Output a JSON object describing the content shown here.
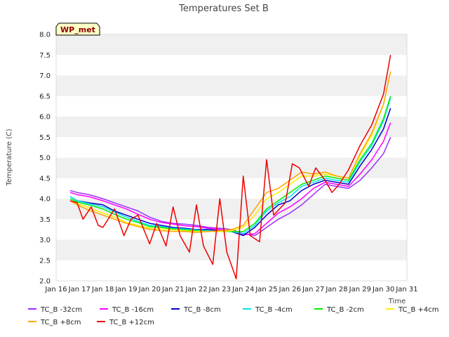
{
  "chart_data": {
    "type": "line",
    "title": "Temperatures Set B",
    "xlabel": "Time",
    "ylabel": "Temperature (C)",
    "badge": "WP_met",
    "ylim": [
      2.0,
      8.0
    ],
    "yticks": [
      "2.0",
      "2.5",
      "3.0",
      "3.5",
      "4.0",
      "4.5",
      "5.0",
      "5.5",
      "6.0",
      "6.5",
      "7.0",
      "7.5",
      "8.0"
    ],
    "xlim": [
      16,
      31
    ],
    "xticks": [
      "Jan 16",
      "Jan 17",
      "Jan 18",
      "Jan 19",
      "Jan 20",
      "Jan 21",
      "Jan 22",
      "Jan 23",
      "Jan 24",
      "Jan 25",
      "Jan 26",
      "Jan 27",
      "Jan 28",
      "Jan 29",
      "Jan 30",
      "Jan 31"
    ],
    "grid": "horizontal bands",
    "legend_position": "bottom",
    "series": [
      {
        "name": "TC_B -32cm",
        "color": "#9b30ff",
        "x": [
          16.6,
          16.9,
          17.4,
          18.0,
          18.5,
          19.0,
          19.5,
          20.0,
          20.5,
          21.0,
          21.5,
          22.0,
          22.5,
          23.0,
          23.5,
          24.0,
          24.5,
          25.0,
          25.5,
          26.0,
          26.5,
          27.0,
          27.5,
          28.0,
          28.5,
          29.0,
          29.5,
          30.0,
          30.3
        ],
        "y": [
          4.2,
          4.15,
          4.1,
          4.0,
          3.9,
          3.8,
          3.7,
          3.55,
          3.45,
          3.4,
          3.38,
          3.35,
          3.3,
          3.28,
          3.25,
          3.15,
          3.1,
          3.3,
          3.5,
          3.65,
          3.85,
          4.1,
          4.35,
          4.3,
          4.25,
          4.45,
          4.75,
          5.1,
          5.5
        ]
      },
      {
        "name": "TC_B -16cm",
        "color": "#ff00ff",
        "x": [
          16.6,
          16.9,
          17.4,
          18.0,
          18.5,
          19.0,
          19.5,
          20.0,
          20.5,
          21.0,
          21.5,
          22.0,
          22.5,
          23.0,
          23.5,
          24.0,
          24.5,
          25.0,
          25.5,
          26.0,
          26.5,
          27.0,
          27.5,
          28.0,
          28.5,
          29.0,
          29.5,
          30.0,
          30.3
        ],
        "y": [
          4.15,
          4.1,
          4.05,
          3.95,
          3.85,
          3.75,
          3.62,
          3.5,
          3.42,
          3.38,
          3.34,
          3.32,
          3.28,
          3.25,
          3.22,
          3.12,
          3.15,
          3.4,
          3.65,
          3.8,
          4.0,
          4.25,
          4.4,
          4.35,
          4.3,
          4.6,
          4.95,
          5.4,
          5.85
        ]
      },
      {
        "name": "TC_B -8cm",
        "color": "#0000cd",
        "x": [
          16.6,
          16.9,
          17.4,
          18.0,
          18.5,
          19.0,
          19.5,
          20.0,
          20.5,
          21.0,
          21.5,
          22.0,
          22.5,
          23.0,
          23.5,
          24.0,
          24.5,
          25.0,
          25.5,
          26.0,
          26.5,
          27.0,
          27.5,
          28.0,
          28.5,
          29.0,
          29.5,
          30.0,
          30.3
        ],
        "y": [
          4.05,
          3.95,
          3.9,
          3.85,
          3.7,
          3.6,
          3.5,
          3.4,
          3.35,
          3.3,
          3.28,
          3.25,
          3.25,
          3.22,
          3.2,
          3.1,
          3.3,
          3.6,
          3.85,
          3.95,
          4.2,
          4.35,
          4.45,
          4.4,
          4.35,
          4.8,
          5.2,
          5.7,
          6.2
        ]
      },
      {
        "name": "TC_B -4cm",
        "color": "#00e5ee",
        "x": [
          16.6,
          16.9,
          17.4,
          18.0,
          18.5,
          19.0,
          19.5,
          20.0,
          20.5,
          21.0,
          21.5,
          22.0,
          22.5,
          23.0,
          23.5,
          24.0,
          24.5,
          25.0,
          25.5,
          26.0,
          26.5,
          27.0,
          27.5,
          28.0,
          28.5,
          29.0,
          29.5,
          30.0,
          30.3
        ],
        "y": [
          4.05,
          3.95,
          3.88,
          3.8,
          3.68,
          3.55,
          3.45,
          3.35,
          3.32,
          3.28,
          3.26,
          3.24,
          3.22,
          3.2,
          3.2,
          3.15,
          3.35,
          3.7,
          3.9,
          4.05,
          4.3,
          4.4,
          4.5,
          4.45,
          4.4,
          4.9,
          5.3,
          5.9,
          6.45
        ]
      },
      {
        "name": "TC_B -2cm",
        "color": "#00ee00",
        "x": [
          16.6,
          16.9,
          17.4,
          18.0,
          18.5,
          19.0,
          19.5,
          20.0,
          20.5,
          21.0,
          21.5,
          22.0,
          22.5,
          23.0,
          23.5,
          24.0,
          24.5,
          25.0,
          25.5,
          26.0,
          26.5,
          27.0,
          27.5,
          28.0,
          28.5,
          29.0,
          29.5,
          30.0,
          30.3
        ],
        "y": [
          4.0,
          3.92,
          3.85,
          3.75,
          3.62,
          3.5,
          3.42,
          3.32,
          3.3,
          3.26,
          3.24,
          3.22,
          3.2,
          3.2,
          3.2,
          3.2,
          3.4,
          3.75,
          3.95,
          4.15,
          4.35,
          4.45,
          4.55,
          4.5,
          4.45,
          4.95,
          5.35,
          5.95,
          6.5
        ]
      },
      {
        "name": "TC_B +4cm",
        "color": "#ffee00",
        "x": [
          16.6,
          16.9,
          17.4,
          18.0,
          18.5,
          19.0,
          19.5,
          20.0,
          20.5,
          21.0,
          21.5,
          22.0,
          22.5,
          23.0,
          23.5,
          24.0,
          24.5,
          25.0,
          25.5,
          26.0,
          26.5,
          27.0,
          27.5,
          28.0,
          28.5,
          29.0,
          29.5,
          30.0,
          30.3
        ],
        "y": [
          3.95,
          3.88,
          3.78,
          3.65,
          3.55,
          3.42,
          3.35,
          3.28,
          3.26,
          3.24,
          3.22,
          3.2,
          3.2,
          3.2,
          3.22,
          3.3,
          3.6,
          4.0,
          4.15,
          4.35,
          4.55,
          4.55,
          4.6,
          4.55,
          4.5,
          5.05,
          5.55,
          6.3,
          7.1
        ]
      },
      {
        "name": "TC_B +8cm",
        "color": "#ffa500",
        "x": [
          16.6,
          16.9,
          17.4,
          18.0,
          18.5,
          19.0,
          19.5,
          20.0,
          20.5,
          21.0,
          21.5,
          22.0,
          22.5,
          23.0,
          23.5,
          24.0,
          24.5,
          25.0,
          25.5,
          26.0,
          26.5,
          27.0,
          27.5,
          28.0,
          28.5,
          29.0,
          29.5,
          30.0,
          30.3
        ],
        "y": [
          3.95,
          3.85,
          3.72,
          3.6,
          3.5,
          3.4,
          3.32,
          3.25,
          3.22,
          3.2,
          3.2,
          3.18,
          3.2,
          3.22,
          3.25,
          3.35,
          3.75,
          4.15,
          4.25,
          4.45,
          4.65,
          4.6,
          4.65,
          4.55,
          4.5,
          5.1,
          5.6,
          6.3,
          7.1
        ]
      },
      {
        "name": "TC_B +12cm",
        "color": "#ee0000",
        "x": [
          16.6,
          16.9,
          17.15,
          17.5,
          17.8,
          18.0,
          18.5,
          18.9,
          19.2,
          19.5,
          20.0,
          20.3,
          20.7,
          21.0,
          21.3,
          21.7,
          22.0,
          22.3,
          22.7,
          23.0,
          23.3,
          23.7,
          24.0,
          24.3,
          24.7,
          25.0,
          25.3,
          25.8,
          26.1,
          26.4,
          26.8,
          27.1,
          27.5,
          27.8,
          28.1,
          28.5,
          29.0,
          29.5,
          30.0,
          30.3
        ],
        "y": [
          3.95,
          3.9,
          3.5,
          3.8,
          3.35,
          3.3,
          3.75,
          3.1,
          3.5,
          3.6,
          2.9,
          3.4,
          2.85,
          3.8,
          3.1,
          2.7,
          3.85,
          2.85,
          2.4,
          4.0,
          2.7,
          2.05,
          4.55,
          3.1,
          2.95,
          4.95,
          3.6,
          3.9,
          4.85,
          4.75,
          4.3,
          4.75,
          4.45,
          4.15,
          4.35,
          4.7,
          5.3,
          5.8,
          6.55,
          7.5
        ]
      }
    ]
  }
}
